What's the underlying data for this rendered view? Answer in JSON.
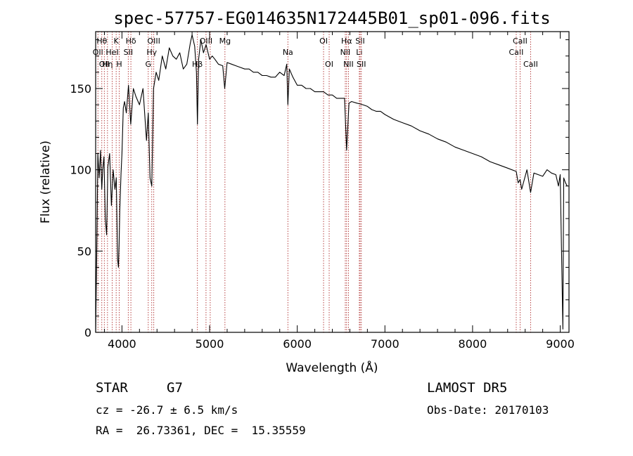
{
  "chart_data": {
    "type": "line",
    "title": "spec-57757-EG014635N172445B01_sp01-096.fits",
    "xlabel": "Wavelength (Å)",
    "ylabel": "Flux (relative)",
    "xlim": [
      3700,
      9100
    ],
    "ylim": [
      0,
      185
    ],
    "x_ticks": [
      4000,
      5000,
      6000,
      7000,
      8000,
      9000
    ],
    "y_ticks": [
      0,
      50,
      100,
      150
    ],
    "grid": false,
    "line_color": "#000000",
    "marker_line_color": "#b03030",
    "series": [
      {
        "x": [
          3700,
          3715,
          3725,
          3740,
          3755,
          3770,
          3780,
          3795,
          3810,
          3825,
          3840,
          3860,
          3880,
          3900,
          3920,
          3935,
          3950,
          3960,
          3968,
          3975,
          3990,
          4000,
          4015,
          4030,
          4050,
          4075,
          4100,
          4130,
          4160,
          4200,
          4240,
          4280,
          4300,
          4320,
          4340,
          4360,
          4390,
          4420,
          4460,
          4500,
          4540,
          4580,
          4620,
          4660,
          4700,
          4740,
          4780,
          4800,
          4830,
          4850,
          4861,
          4875,
          4900,
          4930,
          4960,
          5000,
          5030,
          5060,
          5100,
          5150,
          5172,
          5200,
          5250,
          5300,
          5350,
          5400,
          5450,
          5500,
          5550,
          5600,
          5650,
          5700,
          5750,
          5800,
          5850,
          5880,
          5893,
          5910,
          5950,
          6000,
          6050,
          6100,
          6150,
          6200,
          6250,
          6300,
          6350,
          6400,
          6450,
          6500,
          6540,
          6563,
          6590,
          6620,
          6680,
          6750,
          6800,
          6850,
          6900,
          6950,
          7000,
          7100,
          7200,
          7300,
          7400,
          7500,
          7600,
          7700,
          7800,
          7900,
          8000,
          8100,
          8200,
          8300,
          8400,
          8498,
          8520,
          8542,
          8560,
          8620,
          8662,
          8700,
          8750,
          8800,
          8850,
          8900,
          8950,
          8980,
          9000,
          9030,
          9040,
          9060,
          9080
        ],
        "y": [
          0,
          60,
          110,
          95,
          112,
          88,
          100,
          108,
          70,
          60,
          102,
          110,
          78,
          100,
          88,
          95,
          45,
          40,
          55,
          75,
          98,
          110,
          138,
          142,
          135,
          152,
          128,
          150,
          145,
          140,
          150,
          118,
          135,
          95,
          90,
          150,
          160,
          155,
          170,
          162,
          175,
          170,
          168,
          172,
          162,
          165,
          178,
          183,
          176,
          160,
          128,
          168,
          180,
          172,
          177,
          168,
          170,
          168,
          165,
          164,
          150,
          166,
          165,
          164,
          163,
          162,
          162,
          160,
          160,
          158,
          158,
          157,
          157,
          160,
          158,
          165,
          140,
          162,
          157,
          152,
          152,
          150,
          150,
          148,
          148,
          148,
          146,
          146,
          144,
          144,
          144,
          112,
          141,
          142,
          141,
          140,
          139,
          137,
          136,
          136,
          134,
          131,
          129,
          127,
          124,
          122,
          119,
          117,
          114,
          112,
          110,
          108,
          105,
          103,
          101,
          99,
          92,
          94,
          88,
          100,
          86,
          98,
          97,
          96,
          100,
          98,
          97,
          90,
          97,
          2,
          95,
          92,
          90
        ]
      }
    ],
    "line_markers": [
      {
        "x": 3726,
        "label": "OII",
        "row": 2
      },
      {
        "x": 3770,
        "label": "Hθ",
        "row": 1
      },
      {
        "x": 3799,
        "label": "OII",
        "row": 3
      },
      {
        "x": 3835,
        "label": "Hη",
        "row": 3
      },
      {
        "x": 3889,
        "label": "HeI",
        "row": 2
      },
      {
        "x": 3934,
        "label": "K",
        "row": 1
      },
      {
        "x": 3969,
        "label": "H",
        "row": 3
      },
      {
        "x": 4072,
        "label": "SII",
        "row": 2
      },
      {
        "x": 4102,
        "label": "Hδ",
        "row": 1
      },
      {
        "x": 4300,
        "label": "G",
        "row": 3
      },
      {
        "x": 4340,
        "label": "Hγ",
        "row": 2
      },
      {
        "x": 4363,
        "label": "OIII",
        "row": 1
      },
      {
        "x": 4861,
        "label": "Hβ",
        "row": 3
      },
      {
        "x": 4959,
        "label": "OIII",
        "row": 1
      },
      {
        "x": 5007,
        "label": "",
        "row": 1
      },
      {
        "x": 5175,
        "label": "Mg",
        "row": 1
      },
      {
        "x": 5893,
        "label": "Na",
        "row": 2
      },
      {
        "x": 6300,
        "label": "OI",
        "row": 1
      },
      {
        "x": 6364,
        "label": "OI",
        "row": 3
      },
      {
        "x": 6548,
        "label": "NII",
        "row": 2
      },
      {
        "x": 6563,
        "label": "Hα",
        "row": 1
      },
      {
        "x": 6584,
        "label": "NII",
        "row": 3
      },
      {
        "x": 6708,
        "label": "Li",
        "row": 2
      },
      {
        "x": 6717,
        "label": "SII",
        "row": 1
      },
      {
        "x": 6731,
        "label": "SII",
        "row": 3
      },
      {
        "x": 8498,
        "label": "CaII",
        "row": 2
      },
      {
        "x": 8542,
        "label": "CaII",
        "row": 1
      },
      {
        "x": 8662,
        "label": "CaII",
        "row": 3
      }
    ]
  },
  "info": {
    "object_class": "STAR",
    "subclass": "G7",
    "survey": "LAMOST DR5",
    "velocity_text": "cz = -26.7 ± 6.5 km/s",
    "obs_date_text": "Obs-Date: 20170103",
    "coords_text": "RA =  26.73361, DEC =  15.35559"
  }
}
